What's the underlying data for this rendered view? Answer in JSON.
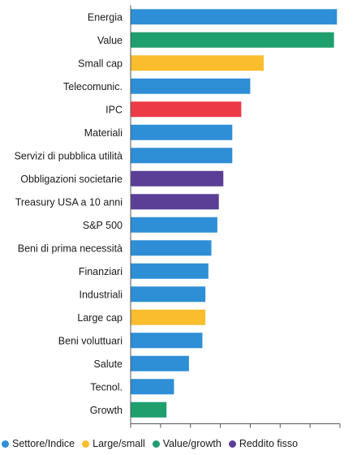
{
  "chart_data": {
    "type": "bar",
    "orientation": "horizontal",
    "categories": [
      "Energia",
      "Value",
      "Small cap",
      "Telecomunic.",
      "IPC",
      "Materiali",
      "Servizi di pubblica utilità",
      "Obbligazioni societarie",
      "Treasury USA a 10 anni",
      "S&P 500",
      "Beni di prima necessità",
      "Finanziari",
      "Industriali",
      "Large cap",
      "Beni voluttuari",
      "Salute",
      "Tecnol.",
      "Growth"
    ],
    "values": [
      13.8,
      13.6,
      8.9,
      8.0,
      7.4,
      6.8,
      6.8,
      6.2,
      5.9,
      5.8,
      5.4,
      5.2,
      5.0,
      5.0,
      4.8,
      3.9,
      2.9,
      2.4
    ],
    "groups": [
      "settore",
      "value_growth",
      "large_small",
      "settore",
      "ipc",
      "settore",
      "settore",
      "reddito_fisso",
      "reddito_fisso",
      "settore",
      "settore",
      "settore",
      "settore",
      "large_small",
      "settore",
      "settore",
      "settore",
      "value_growth"
    ],
    "xlim": [
      0,
      14
    ],
    "xticks": [
      0,
      2,
      4,
      6,
      8,
      10,
      12,
      14
    ],
    "grid": false,
    "legend_position": "bottom",
    "colors": {
      "settore": "#2e8fd6",
      "large_small": "#f9bd2e",
      "value_growth": "#1f9e6e",
      "reddito_fisso": "#5b3f96",
      "ipc": "#ec3b47"
    },
    "legend": [
      {
        "label": "Settore/Indice",
        "group": "settore"
      },
      {
        "label": "Large/small",
        "group": "large_small"
      },
      {
        "label": "Value/growth",
        "group": "value_growth"
      },
      {
        "label": "Reddito fisso",
        "group": "reddito_fisso"
      }
    ]
  }
}
